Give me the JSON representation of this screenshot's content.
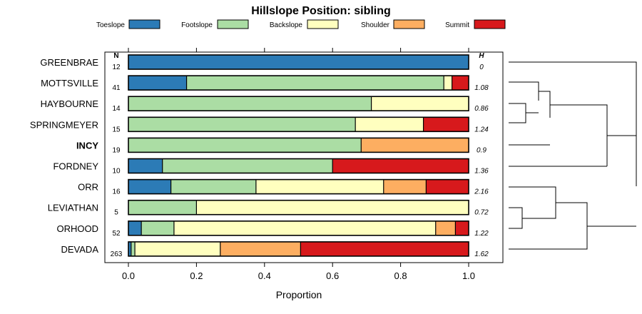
{
  "chart_data": {
    "type": "bar",
    "stacked": true,
    "orientation": "horizontal",
    "title": "Hillslope Position: sibling",
    "xlabel": "Proportion",
    "ylabel": "",
    "xlim": [
      0,
      1
    ],
    "x_ticks": [
      "0.0",
      "0.2",
      "0.4",
      "0.6",
      "0.8",
      "1.0"
    ],
    "x_tick_values": [
      0,
      0.2,
      0.4,
      0.6,
      0.8,
      1.0
    ],
    "n_header": "N",
    "h_header": "H",
    "highlight": "INCY",
    "legend": [
      {
        "name": "Toeslope",
        "color": "#2c7bb6"
      },
      {
        "name": "Footslope",
        "color": "#abdda4"
      },
      {
        "name": "Backslope",
        "color": "#ffffbf"
      },
      {
        "name": "Shoulder",
        "color": "#fdae61"
      },
      {
        "name": "Summit",
        "color": "#d7191c"
      }
    ],
    "rows": [
      {
        "name": "GREENBRAE",
        "n": "12",
        "h": "0",
        "values": [
          1.0,
          0,
          0,
          0,
          0
        ]
      },
      {
        "name": "MOTTSVILLE",
        "n": "41",
        "h": "1.08",
        "values": [
          0.171,
          0.756,
          0.024,
          0,
          0.049
        ]
      },
      {
        "name": "HAYBOURNE",
        "n": "14",
        "h": "0.86",
        "values": [
          0,
          0.714,
          0.286,
          0,
          0
        ]
      },
      {
        "name": "SPRINGMEYER",
        "n": "15",
        "h": "1.24",
        "values": [
          0,
          0.667,
          0.2,
          0,
          0.133
        ]
      },
      {
        "name": "INCY",
        "n": "19",
        "h": "0.9",
        "values": [
          0,
          0.684,
          0,
          0.316,
          0
        ]
      },
      {
        "name": "FORDNEY",
        "n": "10",
        "h": "1.36",
        "values": [
          0.1,
          0.5,
          0,
          0,
          0.4
        ]
      },
      {
        "name": "ORR",
        "n": "16",
        "h": "2.16",
        "values": [
          0.125,
          0.25,
          0.375,
          0.125,
          0.125
        ]
      },
      {
        "name": "LEVIATHAN",
        "n": "5",
        "h": "0.72",
        "values": [
          0,
          0.2,
          0.8,
          0,
          0
        ]
      },
      {
        "name": "ORHOOD",
        "n": "52",
        "h": "1.22",
        "values": [
          0.038,
          0.096,
          0.769,
          0.058,
          0.039
        ]
      },
      {
        "name": "DEVADA",
        "n": "263",
        "h": "1.62",
        "values": [
          0.008,
          0.011,
          0.251,
          0.236,
          0.494
        ]
      }
    ]
  }
}
